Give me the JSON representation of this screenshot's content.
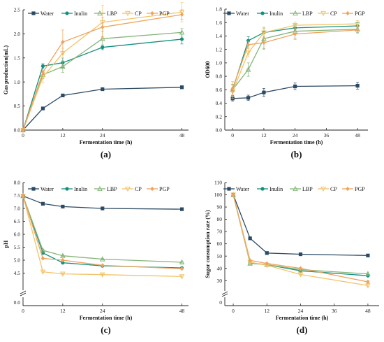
{
  "series_style": {
    "Water": {
      "color": "#2b4a63",
      "marker": "square"
    },
    "Inulin": {
      "color": "#13917e",
      "marker": "circle"
    },
    "LBP": {
      "color": "#86b57a",
      "marker": "triangle"
    },
    "CP": {
      "color": "#f3c46a",
      "marker": "triangle-down"
    },
    "PGP": {
      "color": "#f0a35c",
      "marker": "diamond"
    }
  },
  "chart_data": [
    {
      "id": "a",
      "type": "line",
      "panel_label": "(a)",
      "xlabel": "Fermentation time (h)",
      "ylabel": "Gas production(mL)",
      "xlim": [
        0,
        50
      ],
      "ylim": [
        0,
        2.5
      ],
      "xticks": [
        0,
        12,
        24,
        48
      ],
      "yticks": [
        0.0,
        0.5,
        1.0,
        1.5,
        2.0,
        2.5
      ],
      "ytick_labels": [
        "0.0",
        "0.5",
        "1.0",
        "1.5",
        "2.0",
        "2.5"
      ],
      "legend": "top",
      "series": [
        {
          "name": "Water",
          "x": [
            0,
            6,
            12,
            24,
            48
          ],
          "values": [
            0,
            0.45,
            0.72,
            0.85,
            0.89
          ],
          "err": [
            0,
            0.03,
            0.03,
            0.03,
            0.03
          ]
        },
        {
          "name": "Inulin",
          "x": [
            0,
            6,
            12,
            24,
            48
          ],
          "values": [
            0,
            1.33,
            1.4,
            1.72,
            1.89
          ],
          "err": [
            0,
            0.05,
            0.1,
            0.05,
            0.1
          ]
        },
        {
          "name": "LBP",
          "x": [
            0,
            6,
            12,
            24,
            48
          ],
          "values": [
            0,
            1.15,
            1.32,
            1.9,
            2.03
          ],
          "err": [
            0,
            0.08,
            0.12,
            0.15,
            0.08
          ]
        },
        {
          "name": "CP",
          "x": [
            0,
            6,
            12,
            24,
            48
          ],
          "values": [
            0,
            1.1,
            1.6,
            2.24,
            2.45
          ],
          "err": [
            0,
            0.12,
            0.1,
            0.35,
            0.2
          ]
        },
        {
          "name": "PGP",
          "x": [
            0,
            6,
            12,
            24,
            48
          ],
          "values": [
            0,
            1.2,
            1.83,
            2.14,
            2.4
          ],
          "err": [
            0,
            0.05,
            0.25,
            0.2,
            0.1
          ]
        }
      ]
    },
    {
      "id": "b",
      "type": "line",
      "panel_label": "(b)",
      "xlabel": "Fermentation time (h)",
      "ylabel": "OD600",
      "xlim": [
        -3,
        52
      ],
      "ylim": [
        0,
        1.8
      ],
      "xticks": [
        0,
        12,
        24,
        36,
        48
      ],
      "yticks": [
        0.0,
        0.2,
        0.4,
        0.6,
        0.8,
        1.0,
        1.2,
        1.4,
        1.6,
        1.8
      ],
      "ytick_labels": [
        "0.0",
        "0.2",
        "0.4",
        "0.6",
        "0.8",
        "1.0",
        "1.2",
        "1.4",
        "1.6",
        "1.8"
      ],
      "legend": "top",
      "series": [
        {
          "name": "Water",
          "x": [
            0,
            6,
            12,
            24,
            48
          ],
          "values": [
            0.47,
            0.48,
            0.56,
            0.65,
            0.66
          ],
          "err": [
            0.04,
            0.04,
            0.06,
            0.05,
            0.05
          ]
        },
        {
          "name": "Inulin",
          "x": [
            0,
            6,
            12,
            24,
            48
          ],
          "values": [
            0.6,
            1.33,
            1.45,
            1.52,
            1.55
          ],
          "err": [
            0.08,
            0.06,
            0.08,
            0.05,
            0.05
          ]
        },
        {
          "name": "LBP",
          "x": [
            0,
            6,
            12,
            24,
            48
          ],
          "values": [
            0.6,
            0.9,
            1.36,
            1.47,
            1.5
          ],
          "err": [
            0.08,
            0.1,
            0.15,
            0.1,
            0.05
          ]
        },
        {
          "name": "CP",
          "x": [
            0,
            6,
            12,
            24,
            48
          ],
          "values": [
            0.57,
            1.15,
            1.45,
            1.56,
            1.58
          ],
          "err": [
            0.1,
            0.06,
            0.08,
            0.05,
            0.05
          ]
        },
        {
          "name": "PGP",
          "x": [
            0,
            6,
            12,
            24,
            48
          ],
          "values": [
            0.62,
            1.27,
            1.3,
            1.43,
            1.49
          ],
          "err": [
            0.1,
            0.05,
            0.1,
            0.08,
            0.05
          ]
        }
      ]
    },
    {
      "id": "c",
      "type": "line",
      "panel_label": "(c)",
      "xlabel": "Fermentation time (h)",
      "ylabel": "pH",
      "xlim": [
        0,
        50
      ],
      "ylim": [
        4.0,
        8.0
      ],
      "ylim_lower_segment": [
        0.0,
        0.15
      ],
      "axis_break": true,
      "xticks": [
        0,
        12,
        24,
        48
      ],
      "yticks": [
        4.5,
        5.0,
        5.5,
        6.0,
        6.5,
        7.0,
        7.5,
        8.0
      ],
      "ytick_labels": [
        "4.5",
        "5.0",
        "5.5",
        "6.0",
        "6.5",
        "7.0",
        "7.5",
        "8.0"
      ],
      "lower_ytick_labels": [
        "0.0"
      ],
      "legend": "top",
      "series": [
        {
          "name": "Water",
          "x": [
            0,
            6,
            12,
            24,
            48
          ],
          "values": [
            7.48,
            7.18,
            7.07,
            7.0,
            6.97
          ],
          "err": [
            0.02,
            0.02,
            0.02,
            0.02,
            0.02
          ]
        },
        {
          "name": "Inulin",
          "x": [
            0,
            6,
            12,
            24,
            48
          ],
          "values": [
            7.48,
            5.28,
            4.9,
            4.78,
            4.7
          ],
          "err": [
            0.02,
            0.03,
            0.03,
            0.03,
            0.03
          ]
        },
        {
          "name": "LBP",
          "x": [
            0,
            6,
            12,
            24,
            48
          ],
          "values": [
            7.48,
            5.38,
            5.17,
            5.04,
            4.92
          ],
          "err": [
            0.02,
            0.03,
            0.03,
            0.03,
            0.03
          ]
        },
        {
          "name": "CP",
          "x": [
            0,
            6,
            12,
            24,
            48
          ],
          "values": [
            7.48,
            4.55,
            4.47,
            4.44,
            4.37
          ],
          "err": [
            0.02,
            0.03,
            0.03,
            0.03,
            0.03
          ]
        },
        {
          "name": "PGP",
          "x": [
            0,
            6,
            12,
            24,
            48
          ],
          "values": [
            7.48,
            5.07,
            5.0,
            4.8,
            4.67
          ],
          "err": [
            0.02,
            0.03,
            0.03,
            0.03,
            0.03
          ]
        }
      ]
    },
    {
      "id": "d",
      "type": "line",
      "panel_label": "(d)",
      "xlabel": "Fermentation time (h)",
      "ylabel": "Sugar consumption rate (%)",
      "xlim": [
        -3,
        52
      ],
      "ylim": [
        25,
        110
      ],
      "ylim_lower_segment": [
        0,
        10
      ],
      "axis_break": true,
      "xticks": [
        0,
        12,
        24,
        36,
        48
      ],
      "yticks": [
        30,
        40,
        50,
        60,
        70,
        80,
        90,
        100,
        110
      ],
      "ytick_labels": [
        "30",
        "40",
        "50",
        "60",
        "70",
        "80",
        "90",
        "100",
        "110"
      ],
      "lower_ytick_labels": [
        "0"
      ],
      "legend": "top",
      "series": [
        {
          "name": "Water",
          "x": [
            0,
            6,
            12,
            24,
            48
          ],
          "values": [
            100,
            64.5,
            52.5,
            51.5,
            50.5
          ],
          "err": [
            0.5,
            0.8,
            0.6,
            0.5,
            0.5
          ]
        },
        {
          "name": "Inulin",
          "x": [
            0,
            6,
            12,
            24,
            48
          ],
          "values": [
            100,
            44.5,
            43,
            38,
            34
          ],
          "err": [
            0.5,
            0.8,
            0.8,
            0.8,
            0.8
          ]
        },
        {
          "name": "LBP",
          "x": [
            0,
            6,
            12,
            24,
            48
          ],
          "values": [
            100,
            44,
            43,
            39,
            35.5
          ],
          "err": [
            0.5,
            0.8,
            0.8,
            0.8,
            0.8
          ]
        },
        {
          "name": "CP",
          "x": [
            0,
            6,
            12,
            24,
            48
          ],
          "values": [
            100,
            45,
            42.5,
            35,
            26
          ],
          "err": [
            0.5,
            0.8,
            0.8,
            0.8,
            0.8
          ]
        },
        {
          "name": "PGP",
          "x": [
            0,
            6,
            12,
            24,
            48
          ],
          "values": [
            100,
            46.5,
            44,
            40,
            29
          ],
          "err": [
            0.5,
            0.8,
            0.8,
            0.8,
            0.8
          ]
        }
      ]
    }
  ]
}
